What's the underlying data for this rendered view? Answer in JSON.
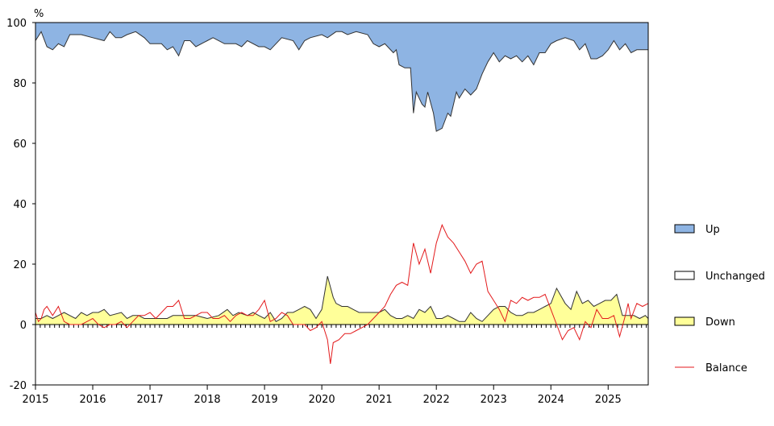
{
  "chart_data": {
    "type": "area",
    "y_unit": "%",
    "x_ticks": [
      "2015",
      "2016",
      "2017",
      "2018",
      "2019",
      "2020",
      "2021",
      "2022",
      "2023",
      "2024",
      "2025"
    ],
    "xlim": [
      2015,
      2025.7
    ],
    "y_ticks": [
      "100",
      "80",
      "60",
      "40",
      "20",
      "0",
      "-20"
    ],
    "ylim": [
      -20,
      100
    ],
    "grid": false,
    "legend_position": "right",
    "colors": {
      "up": "#8eb4e3",
      "unchanged": "#ffffff",
      "down": "#ffff99",
      "balance": "#e31a1c",
      "outline": "#333333"
    },
    "series": [
      {
        "name": "Up",
        "style": "area-top",
        "x": [
          2015.0,
          2015.1,
          2015.2,
          2015.3,
          2015.4,
          2015.5,
          2015.6,
          2015.8,
          2016.0,
          2016.2,
          2016.3,
          2016.4,
          2016.5,
          2016.6,
          2016.75,
          2016.9,
          2017.0,
          2017.2,
          2017.3,
          2017.4,
          2017.5,
          2017.6,
          2017.7,
          2017.8,
          2018.0,
          2018.1,
          2018.3,
          2018.5,
          2018.6,
          2018.7,
          2018.9,
          2019.0,
          2019.1,
          2019.3,
          2019.5,
          2019.6,
          2019.7,
          2019.8,
          2020.0,
          2020.1,
          2020.25,
          2020.35,
          2020.45,
          2020.6,
          2020.8,
          2020.9,
          2021.0,
          2021.1,
          2021.25,
          2021.3,
          2021.35,
          2021.45,
          2021.55,
          2021.6,
          2021.65,
          2021.75,
          2021.8,
          2021.85,
          2021.95,
          2022.0,
          2022.1,
          2022.2,
          2022.25,
          2022.35,
          2022.4,
          2022.5,
          2022.6,
          2022.7,
          2022.8,
          2022.9,
          2023.0,
          2023.1,
          2023.2,
          2023.3,
          2023.4,
          2023.5,
          2023.6,
          2023.7,
          2023.8,
          2023.9,
          2024.0,
          2024.1,
          2024.25,
          2024.4,
          2024.5,
          2024.6,
          2024.7,
          2024.8,
          2024.9,
          2025.0,
          2025.1,
          2025.2,
          2025.3,
          2025.4,
          2025.5,
          2025.6,
          2025.7
        ],
        "y": [
          94,
          97,
          92,
          91,
          93,
          92,
          96,
          96,
          95,
          94,
          97,
          95,
          95,
          96,
          97,
          95,
          93,
          93,
          91,
          92,
          89,
          94,
          94,
          92,
          94,
          95,
          93,
          93,
          92,
          94,
          92,
          92,
          91,
          95,
          94,
          91,
          94,
          95,
          96,
          95,
          97,
          97,
          96,
          97,
          96,
          93,
          92,
          93,
          90,
          91,
          86,
          85,
          85,
          70,
          77,
          73,
          72,
          77,
          70,
          64,
          65,
          70,
          69,
          77,
          75,
          78,
          76,
          78,
          83,
          87,
          90,
          87,
          89,
          88,
          89,
          87,
          89,
          86,
          90,
          90,
          93,
          94,
          95,
          94,
          91,
          93,
          88,
          88,
          89,
          91,
          94,
          91,
          93,
          90,
          91,
          91,
          91
        ]
      },
      {
        "name": "Unchanged",
        "style": "area-band"
      },
      {
        "name": "Down",
        "style": "area-bottom",
        "x": [
          2015.0,
          2015.1,
          2015.2,
          2015.3,
          2015.4,
          2015.5,
          2015.6,
          2015.7,
          2015.8,
          2015.9,
          2016.0,
          2016.1,
          2016.2,
          2016.3,
          2016.5,
          2016.6,
          2016.7,
          2016.8,
          2016.9,
          2017.0,
          2017.2,
          2017.3,
          2017.4,
          2017.6,
          2017.8,
          2018.0,
          2018.2,
          2018.35,
          2018.45,
          2018.55,
          2018.7,
          2018.8,
          2018.9,
          2019.0,
          2019.1,
          2019.2,
          2019.3,
          2019.4,
          2019.5,
          2019.6,
          2019.7,
          2019.8,
          2019.9,
          2020.0,
          2020.1,
          2020.2,
          2020.25,
          2020.35,
          2020.45,
          2020.55,
          2020.65,
          2020.8,
          2021.0,
          2021.1,
          2021.2,
          2021.3,
          2021.4,
          2021.5,
          2021.6,
          2021.7,
          2021.8,
          2021.9,
          2022.0,
          2022.1,
          2022.2,
          2022.3,
          2022.4,
          2022.5,
          2022.6,
          2022.7,
          2022.8,
          2022.9,
          2023.0,
          2023.1,
          2023.2,
          2023.3,
          2023.4,
          2023.5,
          2023.6,
          2023.7,
          2023.8,
          2023.9,
          2024.0,
          2024.1,
          2024.25,
          2024.35,
          2024.45,
          2024.55,
          2024.65,
          2024.75,
          2024.85,
          2024.95,
          2025.05,
          2025.15,
          2025.25,
          2025.35,
          2025.45,
          2025.55,
          2025.65,
          2025.7
        ],
        "y": [
          2,
          2,
          3,
          2,
          3,
          4,
          3,
          2,
          4,
          3,
          4,
          4,
          5,
          3,
          4,
          2,
          3,
          3,
          2,
          2,
          2,
          2,
          3,
          3,
          3,
          2,
          3,
          5,
          3,
          4,
          3,
          4,
          3,
          2,
          4,
          1,
          2,
          4,
          4,
          5,
          6,
          5,
          2,
          5,
          16,
          9,
          7,
          6,
          6,
          5,
          4,
          4,
          4,
          5,
          3,
          2,
          2,
          3,
          2,
          5,
          4,
          6,
          2,
          2,
          3,
          2,
          1,
          1,
          4,
          2,
          1,
          3,
          5,
          6,
          6,
          4,
          3,
          3,
          4,
          4,
          5,
          6,
          7,
          12,
          7,
          5,
          11,
          7,
          8,
          6,
          7,
          8,
          8,
          10,
          3,
          3,
          3,
          2,
          3,
          2
        ]
      },
      {
        "name": "Balance",
        "style": "line",
        "x": [
          2015.0,
          2015.05,
          2015.1,
          2015.15,
          2015.2,
          2015.3,
          2015.4,
          2015.5,
          2015.6,
          2015.7,
          2015.8,
          2015.9,
          2016.0,
          2016.1,
          2016.2,
          2016.3,
          2016.4,
          2016.5,
          2016.6,
          2016.7,
          2016.8,
          2016.9,
          2017.0,
          2017.1,
          2017.2,
          2017.3,
          2017.4,
          2017.5,
          2017.6,
          2017.7,
          2017.8,
          2017.9,
          2018.0,
          2018.1,
          2018.2,
          2018.3,
          2018.4,
          2018.5,
          2018.6,
          2018.7,
          2018.8,
          2018.9,
          2019.0,
          2019.1,
          2019.2,
          2019.3,
          2019.4,
          2019.5,
          2019.6,
          2019.7,
          2019.8,
          2019.9,
          2020.0,
          2020.1,
          2020.15,
          2020.2,
          2020.3,
          2020.4,
          2020.5,
          2020.6,
          2020.7,
          2020.8,
          2020.9,
          2021.0,
          2021.1,
          2021.2,
          2021.3,
          2021.4,
          2021.5,
          2021.6,
          2021.7,
          2021.8,
          2021.9,
          2022.0,
          2022.1,
          2022.2,
          2022.3,
          2022.4,
          2022.5,
          2022.6,
          2022.7,
          2022.8,
          2022.9,
          2023.0,
          2023.1,
          2023.2,
          2023.3,
          2023.4,
          2023.5,
          2023.6,
          2023.7,
          2023.8,
          2023.9,
          2024.0,
          2024.1,
          2024.2,
          2024.3,
          2024.4,
          2024.5,
          2024.6,
          2024.7,
          2024.8,
          2024.9,
          2025.0,
          2025.1,
          2025.2,
          2025.3,
          2025.35,
          2025.4,
          2025.5,
          2025.6,
          2025.7
        ],
        "y": [
          4,
          1,
          2,
          5,
          6,
          3,
          6,
          1,
          0,
          0,
          0,
          1,
          2,
          0,
          -1,
          0,
          0,
          1,
          -1,
          1,
          3,
          3,
          4,
          2,
          4,
          6,
          6,
          8,
          2,
          2,
          3,
          4,
          4,
          2,
          2,
          3,
          1,
          3,
          4,
          3,
          3,
          5,
          8,
          1,
          2,
          4,
          3,
          0,
          0,
          0,
          -2,
          -1,
          1,
          -5,
          -13,
          -6,
          -5,
          -3,
          -3,
          -2,
          -1,
          0,
          2,
          4,
          6,
          10,
          13,
          14,
          13,
          27,
          20,
          25,
          17,
          27,
          33,
          29,
          27,
          24,
          21,
          17,
          20,
          21,
          11,
          8,
          5,
          1,
          8,
          7,
          9,
          8,
          9,
          9,
          10,
          5,
          0,
          -5,
          -2,
          -1,
          -5,
          1,
          -1,
          5,
          2,
          2,
          3,
          -4,
          3,
          7,
          2,
          7,
          6,
          7
        ]
      }
    ]
  }
}
